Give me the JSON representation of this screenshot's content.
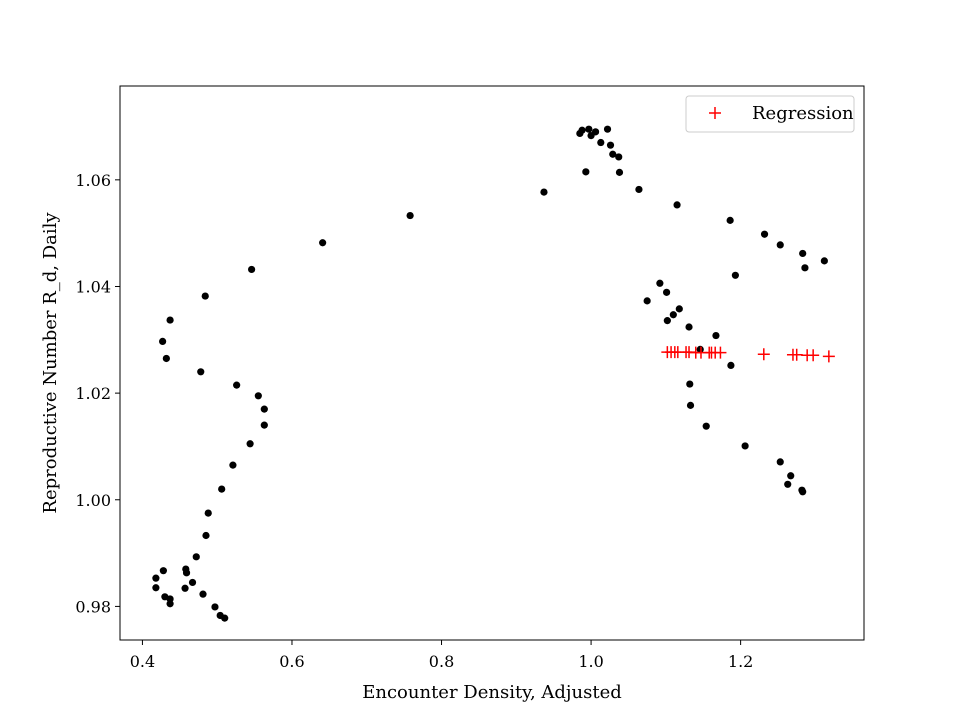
{
  "chart_data": {
    "type": "scatter",
    "title": "",
    "xlabel": "Encounter Density, Adjusted",
    "ylabel": "Reproductive Number R_d, Daily",
    "xlim": [
      0.37,
      1.365
    ],
    "ylim": [
      0.9737,
      1.0776
    ],
    "xticks": [
      {
        "value": 0.4,
        "label": "0.4"
      },
      {
        "value": 0.6,
        "label": "0.6"
      },
      {
        "value": 0.8,
        "label": "0.8"
      },
      {
        "value": 1.0,
        "label": "1.0"
      },
      {
        "value": 1.2,
        "label": "1.2"
      }
    ],
    "yticks": [
      {
        "value": 0.98,
        "label": "0.98"
      },
      {
        "value": 1.0,
        "label": "1.00"
      },
      {
        "value": 1.02,
        "label": "1.02"
      },
      {
        "value": 1.04,
        "label": "1.04"
      },
      {
        "value": 1.06,
        "label": "1.06"
      }
    ],
    "grid": false,
    "legend_position": "top-right",
    "series": [
      {
        "marker": "dot",
        "color": "#000000",
        "points": [
          [
            0.418,
            0.9853
          ],
          [
            0.418,
            0.9835
          ],
          [
            0.428,
            0.9867
          ],
          [
            0.43,
            0.9818
          ],
          [
            0.437,
            0.9814
          ],
          [
            0.437,
            0.9805
          ],
          [
            0.457,
            0.9834
          ],
          [
            0.458,
            0.987
          ],
          [
            0.459,
            0.9863
          ],
          [
            0.467,
            0.9845
          ],
          [
            0.472,
            0.9893
          ],
          [
            0.481,
            0.9823
          ],
          [
            0.485,
            0.9933
          ],
          [
            0.488,
            0.9975
          ],
          [
            0.497,
            0.9799
          ],
          [
            0.504,
            0.9783
          ],
          [
            0.506,
            1.002
          ],
          [
            0.51,
            0.9778
          ],
          [
            0.521,
            1.0065
          ],
          [
            0.544,
            1.0105
          ],
          [
            0.563,
            1.014
          ],
          [
            0.563,
            1.017
          ],
          [
            0.555,
            1.0195
          ],
          [
            0.526,
            1.0215
          ],
          [
            0.478,
            1.024
          ],
          [
            0.432,
            1.0265
          ],
          [
            0.427,
            1.0297
          ],
          [
            0.437,
            1.0337
          ],
          [
            0.484,
            1.0382
          ],
          [
            0.546,
            1.0432
          ],
          [
            0.641,
            1.0482
          ],
          [
            0.758,
            1.0533
          ],
          [
            0.937,
            1.0577
          ],
          [
            0.993,
            1.0615
          ],
          [
            0.985,
            1.0687
          ],
          [
            0.988,
            1.0693
          ],
          [
            0.997,
            1.0695
          ],
          [
            1.0,
            1.0683
          ],
          [
            1.006,
            1.069
          ],
          [
            1.013,
            1.067
          ],
          [
            1.022,
            1.0695
          ],
          [
            1.026,
            1.0665
          ],
          [
            1.029,
            1.0648
          ],
          [
            1.037,
            1.0643
          ],
          [
            1.038,
            1.0614
          ],
          [
            1.064,
            1.0582
          ],
          [
            1.115,
            1.0553
          ],
          [
            1.186,
            1.0524
          ],
          [
            1.232,
            1.0498
          ],
          [
            1.253,
            1.0478
          ],
          [
            1.283,
            1.0462
          ],
          [
            1.312,
            1.0448
          ],
          [
            1.286,
            1.0435
          ],
          [
            1.193,
            1.0421
          ],
          [
            1.092,
            1.0406
          ],
          [
            1.101,
            1.0389
          ],
          [
            1.075,
            1.0373
          ],
          [
            1.118,
            1.0358
          ],
          [
            1.11,
            1.0347
          ],
          [
            1.102,
            1.0336
          ],
          [
            1.131,
            1.0324
          ],
          [
            1.167,
            1.0308
          ],
          [
            1.146,
            1.0282
          ],
          [
            1.187,
            1.0252
          ],
          [
            1.132,
            1.0217
          ],
          [
            1.133,
            1.0177
          ],
          [
            1.154,
            1.0138
          ],
          [
            1.206,
            1.0101
          ],
          [
            1.253,
            1.0071
          ],
          [
            1.267,
            1.0045
          ],
          [
            1.263,
            1.0029
          ],
          [
            1.282,
            1.0018
          ],
          [
            1.283,
            1.0015
          ]
        ]
      },
      {
        "name": "Regression",
        "marker": "plus",
        "color": "#ff0000",
        "points": [
          [
            1.102,
            1.0277
          ],
          [
            1.107,
            1.0277
          ],
          [
            1.112,
            1.0277
          ],
          [
            1.116,
            1.0277
          ],
          [
            1.127,
            1.0277
          ],
          [
            1.131,
            1.0277
          ],
          [
            1.14,
            1.0276
          ],
          [
            1.147,
            1.0276
          ],
          [
            1.158,
            1.0276
          ],
          [
            1.161,
            1.0276
          ],
          [
            1.166,
            1.0276
          ],
          [
            1.173,
            1.0276
          ],
          [
            1.231,
            1.0273
          ],
          [
            1.27,
            1.0272
          ],
          [
            1.275,
            1.0272
          ],
          [
            1.289,
            1.0271
          ],
          [
            1.297,
            1.0271
          ],
          [
            1.318,
            1.0269
          ]
        ]
      }
    ]
  }
}
